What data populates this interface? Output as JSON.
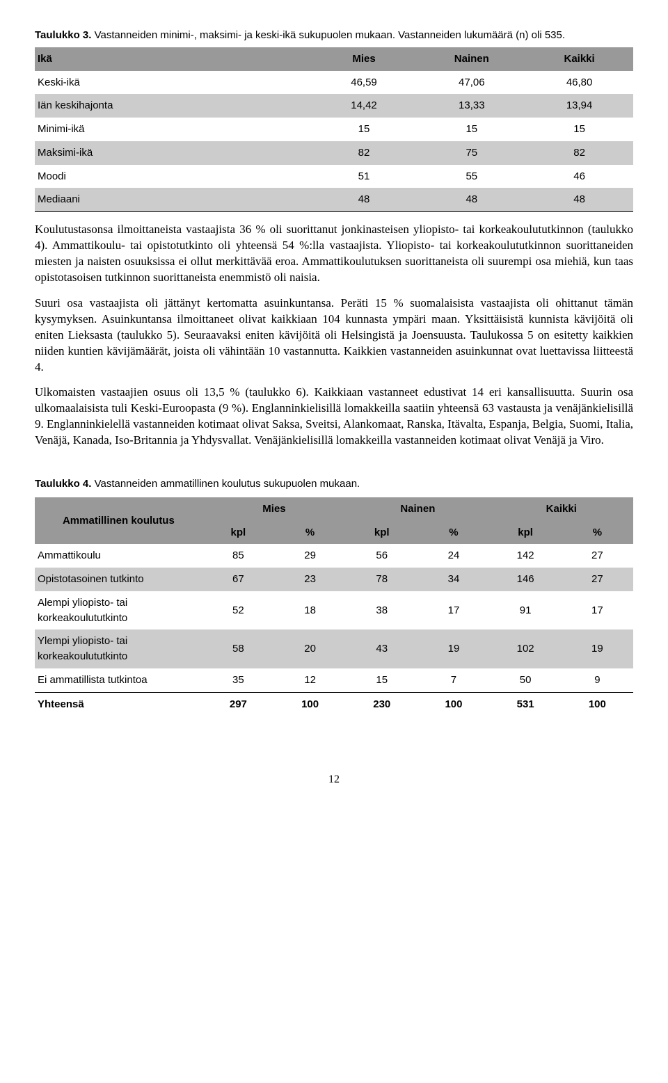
{
  "table3": {
    "caption_prefix": "Taulukko 3.",
    "caption_rest": " Vastanneiden minimi-, maksimi- ja keski-ikä sukupuolen mukaan. Vastanneiden lukumäärä (n) oli 535.",
    "headers": [
      "Ikä",
      "Mies",
      "Nainen",
      "Kaikki"
    ],
    "rows": [
      {
        "label": "Keski-ikä",
        "v": [
          "46,59",
          "47,06",
          "46,80"
        ],
        "shade": false
      },
      {
        "label": "Iän keskihajonta",
        "v": [
          "14,42",
          "13,33",
          "13,94"
        ],
        "shade": true
      },
      {
        "label": "Minimi-ikä",
        "v": [
          "15",
          "15",
          "15"
        ],
        "shade": false
      },
      {
        "label": "Maksimi-ikä",
        "v": [
          "82",
          "75",
          "82"
        ],
        "shade": true
      },
      {
        "label": "Moodi",
        "v": [
          "51",
          "55",
          "46"
        ],
        "shade": false
      },
      {
        "label": "Mediaani",
        "v": [
          "48",
          "48",
          "48"
        ],
        "shade": true
      }
    ]
  },
  "para1": "Koulutustasonsa ilmoittaneista vastaajista 36 % oli suorittanut jonkinasteisen yliopisto- tai korkeakoulututkinnon (taulukko 4). Ammattikoulu- tai opistotutkinto oli yhteensä 54 %:lla vastaajista. Yliopisto- tai korkeakoulututkinnon suorittaneiden miesten ja naisten osuuksissa ei ollut merkittävää eroa. Ammattikoulutuksen suorittaneista oli suurempi osa miehiä, kun taas opistotasoisen tutkinnon suorittaneista enemmistö oli naisia.",
  "para2": "Suuri osa vastaajista oli jättänyt kertomatta asuinkuntansa. Peräti 15 % suomalaisista vastaajista oli ohittanut tämän kysymyksen. Asuinkuntansa ilmoittaneet olivat kaikkiaan 104 kunnasta ympäri maan. Yksittäisistä kunnista kävijöitä oli eniten Lieksasta (taulukko 5). Seuraavaksi eniten kävijöitä oli Helsingistä ja Joensuusta. Taulukossa 5 on esitetty kaikkien niiden kuntien kävijämäärät, joista oli vähintään 10 vastannutta. Kaikkien vastanneiden asuinkunnat ovat luettavissa liitteestä 4.",
  "para3": "Ulkomaisten vastaajien osuus oli 13,5 % (taulukko 6). Kaikkiaan vastanneet edustivat 14 eri kansallisuutta. Suurin osa ulkomaalaisista tuli Keski-Euroopasta (9 %). Englanninkielisillä lomakkeilla saatiin yhteensä 63 vastausta ja venäjänkielisillä 9. Englanninkielellä vastanneiden kotimaat olivat Saksa, Sveitsi, Alankomaat, Ranska, Itävalta, Espanja, Belgia, Suomi, Italia, Venäjä, Kanada, Iso-Britannia ja Yhdysvallat. Venäjänkielisillä lomakkeilla vastanneiden kotimaat olivat Venäjä ja Viro.",
  "table4": {
    "caption_prefix": "Taulukko 4.",
    "caption_rest": " Vastanneiden ammatillinen koulutus sukupuolen mukaan.",
    "rowlabel": "Ammatillinen koulutus",
    "groups": [
      "Mies",
      "Nainen",
      "Kaikki"
    ],
    "subheaders": [
      "kpl",
      "%"
    ],
    "rows": [
      {
        "label": "Ammattikoulu",
        "v": [
          "85",
          "29",
          "56",
          "24",
          "142",
          "27"
        ],
        "shade": false
      },
      {
        "label": "Opistotasoinen tutkinto",
        "v": [
          "67",
          "23",
          "78",
          "34",
          "146",
          "27"
        ],
        "shade": true
      },
      {
        "label": "Alempi yliopisto- tai korkeakoulututkinto",
        "v": [
          "52",
          "18",
          "38",
          "17",
          "91",
          "17"
        ],
        "shade": false
      },
      {
        "label": "Ylempi yliopisto- tai korkeakoulututkinto",
        "v": [
          "58",
          "20",
          "43",
          "19",
          "102",
          "19"
        ],
        "shade": true
      },
      {
        "label": "Ei ammatillista tutkintoa",
        "v": [
          "35",
          "12",
          "15",
          "7",
          "50",
          "9"
        ],
        "shade": false
      }
    ],
    "total": {
      "label": "Yhteensä",
      "v": [
        "297",
        "100",
        "230",
        "100",
        "531",
        "100"
      ]
    }
  },
  "pageNumber": "12"
}
